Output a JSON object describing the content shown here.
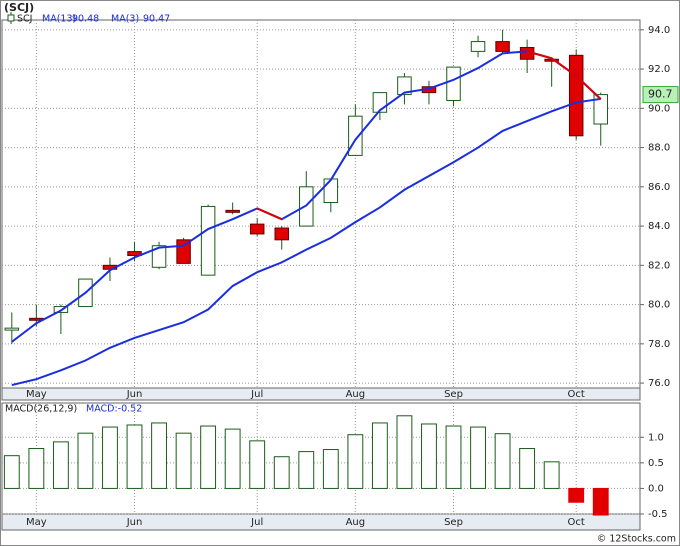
{
  "chart_data": [
    {
      "type": "candlestick",
      "title": "(SCJ)",
      "name": "SCJ",
      "up_color": "#ffffff",
      "down_color": "#e00000",
      "edge_color": "#1a5c1a",
      "open": [
        78.7,
        79.3,
        79.6,
        79.9,
        82.0,
        82.7,
        81.9,
        83.3,
        81.5,
        84.8,
        84.1,
        83.9,
        84.0,
        85.2,
        87.6,
        89.8,
        90.7,
        91.1,
        90.4,
        92.9,
        93.4,
        93.1,
        92.5,
        92.7,
        89.2
      ],
      "high": [
        79.6,
        80.0,
        80.0,
        81.3,
        82.4,
        83.2,
        83.2,
        83.4,
        85.1,
        85.2,
        84.4,
        84.0,
        86.8,
        86.4,
        90.2,
        90.8,
        91.8,
        91.4,
        92.1,
        93.7,
        94.0,
        93.5,
        92.6,
        93.0,
        90.8
      ],
      "low": [
        78.0,
        78.9,
        78.5,
        79.9,
        81.2,
        82.2,
        81.8,
        82.1,
        81.5,
        84.6,
        83.5,
        82.8,
        84.0,
        84.7,
        87.6,
        89.4,
        90.2,
        90.2,
        90.1,
        92.6,
        92.8,
        91.8,
        91.1,
        88.4,
        88.1
      ],
      "close": [
        78.8,
        79.2,
        79.9,
        81.3,
        81.8,
        82.5,
        83.0,
        82.1,
        85.0,
        84.7,
        83.6,
        83.3,
        86.0,
        86.4,
        89.6,
        90.8,
        91.6,
        90.8,
        92.1,
        93.4,
        92.9,
        92.5,
        92.4,
        88.6,
        90.7
      ],
      "series": [
        {
          "name": "MA(13)",
          "color": "#1a2ee0",
          "values": [
            75.9,
            76.2,
            76.65,
            77.15,
            77.8,
            78.3,
            78.7,
            79.1,
            79.75,
            80.95,
            81.65,
            82.15,
            82.8,
            83.4,
            84.2,
            84.95,
            85.85,
            86.55,
            87.25,
            88.0,
            88.85,
            89.35,
            89.85,
            90.3,
            90.48
          ]
        },
        {
          "name": "MA(3)",
          "color": "#1a2ee0",
          "down_color": "#e00000",
          "values": [
            78.1,
            79.05,
            79.7,
            80.6,
            81.75,
            82.4,
            82.9,
            83.0,
            83.85,
            84.35,
            84.9,
            84.35,
            85.05,
            86.35,
            88.4,
            89.9,
            90.8,
            91.0,
            91.45,
            92.05,
            92.8,
            92.9,
            92.55,
            91.65,
            90.47
          ]
        }
      ],
      "last_color": "#b8f0b8",
      "xlim": [
        -0.4,
        25.6
      ],
      "xticks": [
        {
          "value": 1,
          "label": "May"
        },
        {
          "value": 5,
          "label": "Jun"
        },
        {
          "value": 10,
          "label": "Jul"
        },
        {
          "value": 14,
          "label": "Aug"
        },
        {
          "value": 18,
          "label": "Sep"
        },
        {
          "value": 23,
          "label": "Oct"
        }
      ],
      "ylim": [
        75.75,
        94.5
      ],
      "yticks": [
        {
          "value": 76,
          "label": "76.0"
        },
        {
          "value": 78,
          "label": "78.0"
        },
        {
          "value": 80,
          "label": "80.0"
        },
        {
          "value": 82,
          "label": "82.0"
        },
        {
          "value": 84,
          "label": "84.0"
        },
        {
          "value": 86,
          "label": "86.0"
        },
        {
          "value": 88,
          "label": "88.0"
        },
        {
          "value": 90,
          "label": "90.0"
        },
        {
          "value": 92,
          "label": "92.0"
        },
        {
          "value": 94,
          "label": "94.0"
        }
      ],
      "grid": true
    },
    {
      "type": "bar",
      "name": "MACD(26,12,9)",
      "current_label": "MACD:-0.52",
      "color": "#1a5c1a",
      "down_color": "#e00000",
      "values": [
        0.64,
        0.78,
        0.91,
        1.08,
        1.2,
        1.24,
        1.28,
        1.08,
        1.22,
        1.16,
        0.93,
        0.62,
        0.72,
        0.76,
        1.05,
        1.28,
        1.42,
        1.26,
        1.22,
        1.2,
        1.07,
        0.78,
        0.52,
        -0.27,
        -0.52
      ],
      "xlim": [
        -0.4,
        25.6
      ],
      "xticks": [
        {
          "value": 1,
          "label": "May"
        },
        {
          "value": 5,
          "label": "Jun"
        },
        {
          "value": 10,
          "label": "Jul"
        },
        {
          "value": 14,
          "label": "Aug"
        },
        {
          "value": 18,
          "label": "Sep"
        },
        {
          "value": 23,
          "label": "Oct"
        }
      ],
      "ylim": [
        -0.5,
        1.67
      ],
      "yticks": [
        {
          "value": 1,
          "label": "1.0"
        },
        {
          "value": 0.5,
          "label": "0.5"
        },
        {
          "value": 0,
          "label": "0.0"
        },
        {
          "value": -0.5,
          "label": "-0.5"
        }
      ],
      "grid": true
    }
  ],
  "footer": "© 12Stocks.com"
}
